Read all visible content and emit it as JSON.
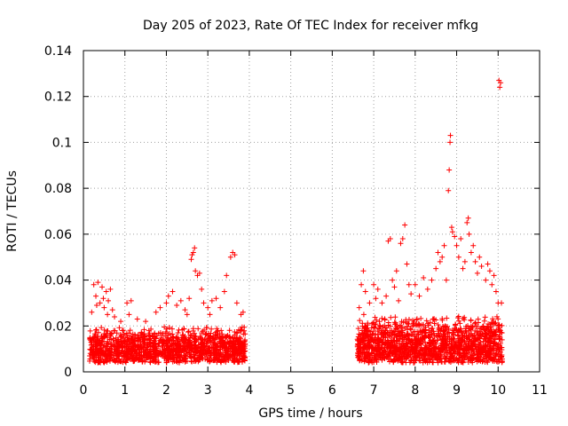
{
  "chart_data": {
    "type": "scatter",
    "title": "Day 205 of 2023, Rate Of TEC Index for receiver mfkg",
    "xlabel": "GPS time / hours",
    "ylabel": "ROTI / TECUs",
    "xlim": [
      0,
      11
    ],
    "ylim": [
      0,
      0.14
    ],
    "xticks": [
      0,
      1,
      2,
      3,
      4,
      5,
      6,
      7,
      8,
      9,
      10,
      11
    ],
    "yticks": [
      0,
      0.02,
      0.04,
      0.06,
      0.08,
      0.1,
      0.12,
      0.14
    ],
    "xtick_labels": [
      "0",
      "1",
      "2",
      "3",
      "4",
      "5",
      "6",
      "7",
      "8",
      "9",
      "10",
      "11"
    ],
    "ytick_labels": [
      "0",
      "0.02",
      "0.04",
      "0.06",
      "0.08",
      "0.1",
      "0.12",
      "0.14"
    ],
    "grid": true,
    "marker": "+",
    "color": "#ff0000",
    "bulk": [
      {
        "x_range": [
          0.15,
          3.9
        ],
        "y_range": [
          0.004,
          0.02
        ],
        "count": 1400,
        "seed": 11
      },
      {
        "x_range": [
          6.6,
          10.1
        ],
        "y_range": [
          0.004,
          0.025
        ],
        "count": 1500,
        "seed": 23
      }
    ],
    "points": [
      {
        "x": 0.25,
        "y": 0.038
      },
      {
        "x": 0.3,
        "y": 0.033
      },
      {
        "x": 0.35,
        "y": 0.039
      },
      {
        "x": 0.4,
        "y": 0.03
      },
      {
        "x": 0.45,
        "y": 0.037
      },
      {
        "x": 0.5,
        "y": 0.028
      },
      {
        "x": 0.55,
        "y": 0.035
      },
      {
        "x": 0.6,
        "y": 0.031
      },
      {
        "x": 0.65,
        "y": 0.036
      },
      {
        "x": 0.7,
        "y": 0.027
      },
      {
        "x": 0.75,
        "y": 0.024
      },
      {
        "x": 0.2,
        "y": 0.026
      },
      {
        "x": 0.32,
        "y": 0.029
      },
      {
        "x": 0.48,
        "y": 0.032
      },
      {
        "x": 0.58,
        "y": 0.025
      },
      {
        "x": 0.9,
        "y": 0.022
      },
      {
        "x": 1.05,
        "y": 0.03
      },
      {
        "x": 1.1,
        "y": 0.025
      },
      {
        "x": 1.15,
        "y": 0.031
      },
      {
        "x": 1.3,
        "y": 0.023
      },
      {
        "x": 1.5,
        "y": 0.022
      },
      {
        "x": 1.75,
        "y": 0.026
      },
      {
        "x": 1.85,
        "y": 0.028
      },
      {
        "x": 2.0,
        "y": 0.03
      },
      {
        "x": 2.05,
        "y": 0.033
      },
      {
        "x": 2.15,
        "y": 0.035
      },
      {
        "x": 2.25,
        "y": 0.029
      },
      {
        "x": 2.35,
        "y": 0.031
      },
      {
        "x": 2.45,
        "y": 0.027
      },
      {
        "x": 2.5,
        "y": 0.025
      },
      {
        "x": 2.55,
        "y": 0.032
      },
      {
        "x": 2.6,
        "y": 0.049
      },
      {
        "x": 2.62,
        "y": 0.051
      },
      {
        "x": 2.65,
        "y": 0.052
      },
      {
        "x": 2.68,
        "y": 0.054
      },
      {
        "x": 2.7,
        "y": 0.044
      },
      {
        "x": 2.75,
        "y": 0.042
      },
      {
        "x": 2.8,
        "y": 0.043
      },
      {
        "x": 2.85,
        "y": 0.036
      },
      {
        "x": 2.9,
        "y": 0.03
      },
      {
        "x": 3.0,
        "y": 0.028
      },
      {
        "x": 3.05,
        "y": 0.025
      },
      {
        "x": 3.1,
        "y": 0.031
      },
      {
        "x": 3.2,
        "y": 0.032
      },
      {
        "x": 3.3,
        "y": 0.028
      },
      {
        "x": 3.4,
        "y": 0.035
      },
      {
        "x": 3.45,
        "y": 0.042
      },
      {
        "x": 3.55,
        "y": 0.05
      },
      {
        "x": 3.6,
        "y": 0.052
      },
      {
        "x": 3.65,
        "y": 0.051
      },
      {
        "x": 3.7,
        "y": 0.03
      },
      {
        "x": 3.8,
        "y": 0.025
      },
      {
        "x": 3.85,
        "y": 0.026
      },
      {
        "x": 6.65,
        "y": 0.028
      },
      {
        "x": 6.7,
        "y": 0.038
      },
      {
        "x": 6.75,
        "y": 0.044
      },
      {
        "x": 6.8,
        "y": 0.035
      },
      {
        "x": 6.9,
        "y": 0.03
      },
      {
        "x": 7.0,
        "y": 0.038
      },
      {
        "x": 7.05,
        "y": 0.032
      },
      {
        "x": 7.1,
        "y": 0.036
      },
      {
        "x": 7.2,
        "y": 0.03
      },
      {
        "x": 7.3,
        "y": 0.033
      },
      {
        "x": 7.35,
        "y": 0.057
      },
      {
        "x": 7.4,
        "y": 0.058
      },
      {
        "x": 7.45,
        "y": 0.04
      },
      {
        "x": 7.5,
        "y": 0.037
      },
      {
        "x": 7.55,
        "y": 0.044
      },
      {
        "x": 7.6,
        "y": 0.031
      },
      {
        "x": 7.65,
        "y": 0.056
      },
      {
        "x": 7.7,
        "y": 0.058
      },
      {
        "x": 7.75,
        "y": 0.064
      },
      {
        "x": 7.8,
        "y": 0.047
      },
      {
        "x": 7.85,
        "y": 0.038
      },
      {
        "x": 7.9,
        "y": 0.034
      },
      {
        "x": 8.0,
        "y": 0.038
      },
      {
        "x": 8.1,
        "y": 0.033
      },
      {
        "x": 8.2,
        "y": 0.041
      },
      {
        "x": 8.3,
        "y": 0.036
      },
      {
        "x": 8.4,
        "y": 0.04
      },
      {
        "x": 8.5,
        "y": 0.045
      },
      {
        "x": 8.55,
        "y": 0.052
      },
      {
        "x": 8.6,
        "y": 0.048
      },
      {
        "x": 8.65,
        "y": 0.05
      },
      {
        "x": 8.7,
        "y": 0.055
      },
      {
        "x": 8.75,
        "y": 0.04
      },
      {
        "x": 8.8,
        "y": 0.079
      },
      {
        "x": 8.82,
        "y": 0.088
      },
      {
        "x": 8.84,
        "y": 0.1
      },
      {
        "x": 8.85,
        "y": 0.103
      },
      {
        "x": 8.88,
        "y": 0.063
      },
      {
        "x": 8.9,
        "y": 0.061
      },
      {
        "x": 8.95,
        "y": 0.059
      },
      {
        "x": 9.0,
        "y": 0.055
      },
      {
        "x": 9.05,
        "y": 0.05
      },
      {
        "x": 9.1,
        "y": 0.058
      },
      {
        "x": 9.15,
        "y": 0.045
      },
      {
        "x": 9.2,
        "y": 0.048
      },
      {
        "x": 9.25,
        "y": 0.065
      },
      {
        "x": 9.28,
        "y": 0.067
      },
      {
        "x": 9.3,
        "y": 0.06
      },
      {
        "x": 9.35,
        "y": 0.052
      },
      {
        "x": 9.4,
        "y": 0.055
      },
      {
        "x": 9.45,
        "y": 0.048
      },
      {
        "x": 9.5,
        "y": 0.043
      },
      {
        "x": 9.55,
        "y": 0.05
      },
      {
        "x": 9.6,
        "y": 0.046
      },
      {
        "x": 9.7,
        "y": 0.04
      },
      {
        "x": 9.75,
        "y": 0.047
      },
      {
        "x": 9.8,
        "y": 0.044
      },
      {
        "x": 9.85,
        "y": 0.038
      },
      {
        "x": 9.9,
        "y": 0.042
      },
      {
        "x": 9.95,
        "y": 0.035
      },
      {
        "x": 10.0,
        "y": 0.03
      },
      {
        "x": 10.02,
        "y": 0.127
      },
      {
        "x": 10.04,
        "y": 0.124
      },
      {
        "x": 10.06,
        "y": 0.126
      },
      {
        "x": 10.08,
        "y": 0.03
      }
    ]
  }
}
